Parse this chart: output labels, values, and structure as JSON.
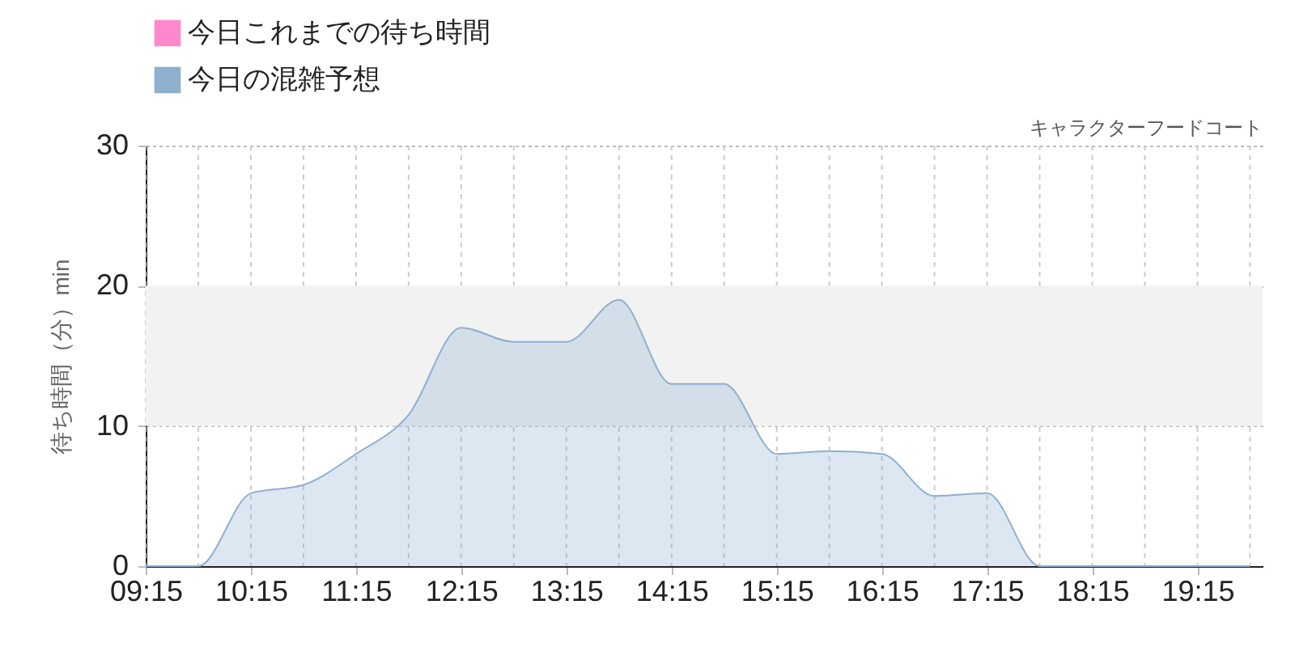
{
  "chart_data": {
    "type": "area",
    "ylabel": "待ち時間（分）min",
    "annotations": [
      "キャラクターフードコート"
    ],
    "x": [
      9.25,
      9.75,
      10.25,
      10.75,
      11.25,
      11.75,
      12.25,
      12.75,
      13.25,
      13.75,
      14.25,
      14.75,
      15.25,
      15.75,
      16.25,
      16.75,
      17.25,
      17.75,
      18.25,
      18.75,
      19.25,
      19.75
    ],
    "series": [
      {
        "name": "今日これまでの待ち時間",
        "color": "#ff88cc",
        "values": [
          null,
          null,
          null,
          null,
          null,
          null,
          null,
          null,
          null,
          null,
          null,
          null,
          null,
          null,
          null,
          null,
          null,
          null,
          null,
          null,
          null,
          null
        ]
      },
      {
        "name": "今日の混雑予想",
        "color": "#8fb0cf",
        "values": [
          0,
          0,
          5.2,
          5.8,
          8,
          10.8,
          17,
          16,
          16,
          19,
          13,
          13,
          8,
          8.2,
          8,
          5,
          5.2,
          0,
          0,
          0,
          0,
          0
        ]
      }
    ],
    "xlim": [
      9.25,
      19.87
    ],
    "xticks": [
      {
        "value": 9.25,
        "label": "09:15"
      },
      {
        "value": 9.75,
        "label": null
      },
      {
        "value": 10.25,
        "label": "10:15"
      },
      {
        "value": 10.75,
        "label": null
      },
      {
        "value": 11.25,
        "label": "11:15"
      },
      {
        "value": 11.75,
        "label": null
      },
      {
        "value": 12.25,
        "label": "12:15"
      },
      {
        "value": 12.75,
        "label": null
      },
      {
        "value": 13.25,
        "label": "13:15"
      },
      {
        "value": 13.75,
        "label": null
      },
      {
        "value": 14.25,
        "label": "14:15"
      },
      {
        "value": 14.75,
        "label": null
      },
      {
        "value": 15.25,
        "label": "15:15"
      },
      {
        "value": 15.75,
        "label": null
      },
      {
        "value": 16.25,
        "label": "16:15"
      },
      {
        "value": 16.75,
        "label": null
      },
      {
        "value": 17.25,
        "label": "17:15"
      },
      {
        "value": 17.75,
        "label": null
      },
      {
        "value": 18.25,
        "label": "18:15"
      },
      {
        "value": 18.75,
        "label": null
      },
      {
        "value": 19.25,
        "label": "19:15"
      },
      {
        "value": 19.75,
        "label": null
      }
    ],
    "ylim": [
      0,
      30
    ],
    "yticks": [
      0,
      10,
      20,
      30
    ],
    "bands": [
      {
        "axis": "y",
        "from": 10,
        "to": 20,
        "color": "#f2f2f2"
      }
    ],
    "grid": true,
    "legend": "top left"
  }
}
